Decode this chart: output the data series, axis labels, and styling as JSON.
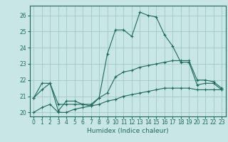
{
  "xlabel": "Humidex (Indice chaleur)",
  "bg_color": "#c8e6e6",
  "grid_color": "#a0c8c8",
  "line_color": "#1a6b5a",
  "line1": {
    "x": [
      0,
      1,
      2,
      3,
      4,
      5,
      6,
      7,
      8,
      9,
      10,
      11,
      12,
      13,
      14,
      15,
      16,
      17,
      18,
      19,
      20,
      21,
      22,
      23
    ],
    "y": [
      20.9,
      21.8,
      21.8,
      20.1,
      20.7,
      20.7,
      20.5,
      20.4,
      20.9,
      23.6,
      25.1,
      25.1,
      24.7,
      26.2,
      26.0,
      25.9,
      24.8,
      24.1,
      23.1,
      23.1,
      21.7,
      21.8,
      21.8,
      21.4
    ]
  },
  "line2": {
    "x": [
      0,
      1,
      2,
      3,
      4,
      5,
      6,
      7,
      8,
      9,
      10,
      11,
      12,
      13,
      14,
      15,
      16,
      17,
      18,
      19,
      20,
      21,
      22,
      23
    ],
    "y": [
      20.9,
      21.4,
      21.8,
      20.5,
      20.5,
      20.5,
      20.5,
      20.5,
      20.9,
      21.2,
      22.2,
      22.5,
      22.6,
      22.8,
      22.9,
      23.0,
      23.1,
      23.2,
      23.2,
      23.2,
      22.0,
      22.0,
      21.9,
      21.5
    ]
  },
  "line3": {
    "x": [
      0,
      1,
      2,
      3,
      4,
      5,
      6,
      7,
      8,
      9,
      10,
      11,
      12,
      13,
      14,
      15,
      16,
      17,
      18,
      19,
      20,
      21,
      22,
      23
    ],
    "y": [
      20.0,
      20.3,
      20.5,
      20.0,
      20.0,
      20.2,
      20.3,
      20.4,
      20.5,
      20.7,
      20.8,
      21.0,
      21.1,
      21.2,
      21.3,
      21.4,
      21.5,
      21.5,
      21.5,
      21.5,
      21.4,
      21.4,
      21.4,
      21.4
    ]
  },
  "xlim": [
    -0.5,
    23.5
  ],
  "ylim": [
    19.75,
    26.6
  ],
  "yticks": [
    20,
    21,
    22,
    23,
    24,
    25,
    26
  ],
  "xticks": [
    0,
    1,
    2,
    3,
    4,
    5,
    6,
    7,
    8,
    9,
    10,
    11,
    12,
    13,
    14,
    15,
    16,
    17,
    18,
    19,
    20,
    21,
    22,
    23
  ]
}
